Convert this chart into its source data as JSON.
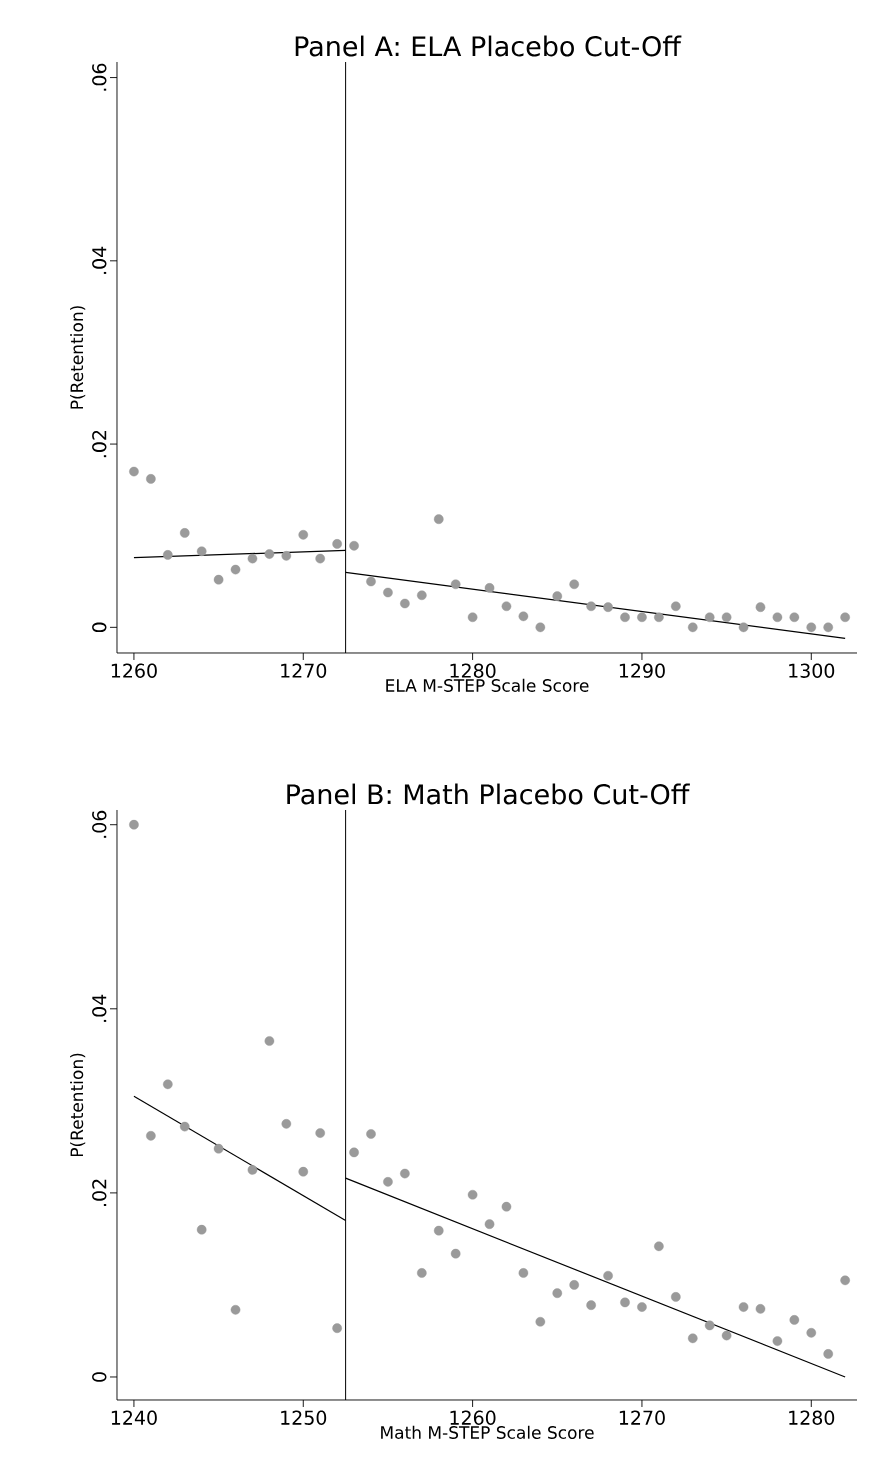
{
  "chart_data": [
    {
      "type": "scatter",
      "title": "Panel A: ELA Placebo Cut-Off",
      "xlabel": "ELA M-STEP Scale Score",
      "ylabel": "P(Retention)",
      "xlim": [
        1259.0,
        1302.7
      ],
      "ylim": [
        -0.0028,
        0.0617
      ],
      "xticks": [
        1260,
        1270,
        1280,
        1290,
        1300
      ],
      "grid": false,
      "yticks": [
        {
          "value": 0,
          "label": "0"
        },
        {
          "value": 0.02,
          "label": ".02"
        },
        {
          "value": 0.04,
          "label": ".04"
        },
        {
          "value": 0.06,
          "label": ".06"
        }
      ],
      "ref_lines": [
        {
          "axis": "x",
          "value": 1272.5,
          "color": "#000000",
          "line_style": "solid"
        }
      ],
      "series": [
        {
          "color": "#9a9a9a",
          "marker": "circle",
          "x": [
            1260,
            1261,
            1262,
            1263,
            1264,
            1265,
            1266,
            1267,
            1268,
            1269,
            1270,
            1271,
            1272,
            1273,
            1274,
            1275,
            1276,
            1277,
            1278,
            1279,
            1280,
            1281,
            1282,
            1283,
            1284,
            1285,
            1286,
            1287,
            1288,
            1289,
            1290,
            1291,
            1292,
            1293,
            1294,
            1295,
            1296,
            1297,
            1298,
            1299,
            1300,
            1301,
            1302
          ],
          "values": [
            0.017,
            0.0162,
            0.0079,
            0.0103,
            0.0083,
            0.0052,
            0.0063,
            0.0075,
            0.008,
            0.0078,
            0.0101,
            0.0075,
            0.0091,
            0.0089,
            0.005,
            0.0038,
            0.0026,
            0.0035,
            0.0118,
            0.0047,
            0.0011,
            0.0043,
            0.0023,
            0.0012,
            0.0,
            0.0034,
            0.0047,
            0.0023,
            0.0022,
            0.0011,
            0.0011,
            0.0011,
            0.0023,
            0.0,
            0.0011,
            0.0011,
            0.0,
            0.0022,
            0.0011,
            0.0011,
            0.0,
            0.0,
            0.0011
          ]
        },
        {
          "type": "line",
          "color": "#000000",
          "marker": "none",
          "line_style": "solid",
          "x": [
            1260,
            1272.5
          ],
          "values": [
            0.0076,
            0.0084
          ]
        },
        {
          "type": "line",
          "color": "#000000",
          "marker": "none",
          "line_style": "solid",
          "x": [
            1272.5,
            1302
          ],
          "values": [
            0.006,
            -0.0012
          ]
        }
      ]
    },
    {
      "type": "scatter",
      "title": "Panel B: Math Placebo Cut-Off",
      "xlabel": "Math M-STEP Scale Score",
      "ylabel": "P(Retention)",
      "xlim": [
        1239.0,
        1282.7
      ],
      "ylim": [
        -0.0025,
        0.0616
      ],
      "xticks": [
        1240,
        1250,
        1260,
        1270,
        1280
      ],
      "yticks": [
        {
          "value": 0,
          "label": "0"
        },
        {
          "value": 0.02,
          "label": ".02"
        },
        {
          "value": 0.04,
          "label": ".04"
        },
        {
          "value": 0.06,
          "label": ".06"
        }
      ],
      "grid": false,
      "ref_lines": [
        {
          "axis": "x",
          "value": 1252.5,
          "color": "#000000",
          "line_style": "solid"
        }
      ],
      "series": [
        {
          "color": "#9a9a9a",
          "marker": "circle",
          "x": [
            1240,
            1241,
            1242,
            1243,
            1244,
            1245,
            1246,
            1247,
            1248,
            1249,
            1250,
            1251,
            1252,
            1253,
            1254,
            1255,
            1256,
            1257,
            1258,
            1259,
            1260,
            1261,
            1262,
            1263,
            1264,
            1265,
            1266,
            1267,
            1268,
            1269,
            1270,
            1271,
            1272,
            1273,
            1274,
            1275,
            1276,
            1277,
            1278,
            1279,
            1280,
            1281,
            1282
          ],
          "values": [
            0.06,
            0.0262,
            0.0318,
            0.0272,
            0.016,
            0.0248,
            0.0073,
            0.0225,
            0.0365,
            0.0275,
            0.0223,
            0.0265,
            0.0053,
            0.0244,
            0.0264,
            0.0212,
            0.0221,
            0.0113,
            0.0159,
            0.0134,
            0.0198,
            0.0166,
            0.0185,
            0.0113,
            0.006,
            0.0091,
            0.01,
            0.0078,
            0.011,
            0.0081,
            0.0076,
            0.0142,
            0.0087,
            0.0042,
            0.0056,
            0.0045,
            0.0076,
            0.0074,
            0.0039,
            0.0062,
            0.0048,
            0.0025,
            0.0105
          ]
        },
        {
          "type": "line",
          "color": "#000000",
          "marker": "none",
          "line_style": "solid",
          "x": [
            1240,
            1252.5
          ],
          "values": [
            0.0305,
            0.017
          ]
        },
        {
          "type": "line",
          "color": "#000000",
          "marker": "none",
          "line_style": "solid",
          "x": [
            1252.5,
            1282
          ],
          "values": [
            0.0216,
            0.0
          ]
        }
      ]
    }
  ]
}
